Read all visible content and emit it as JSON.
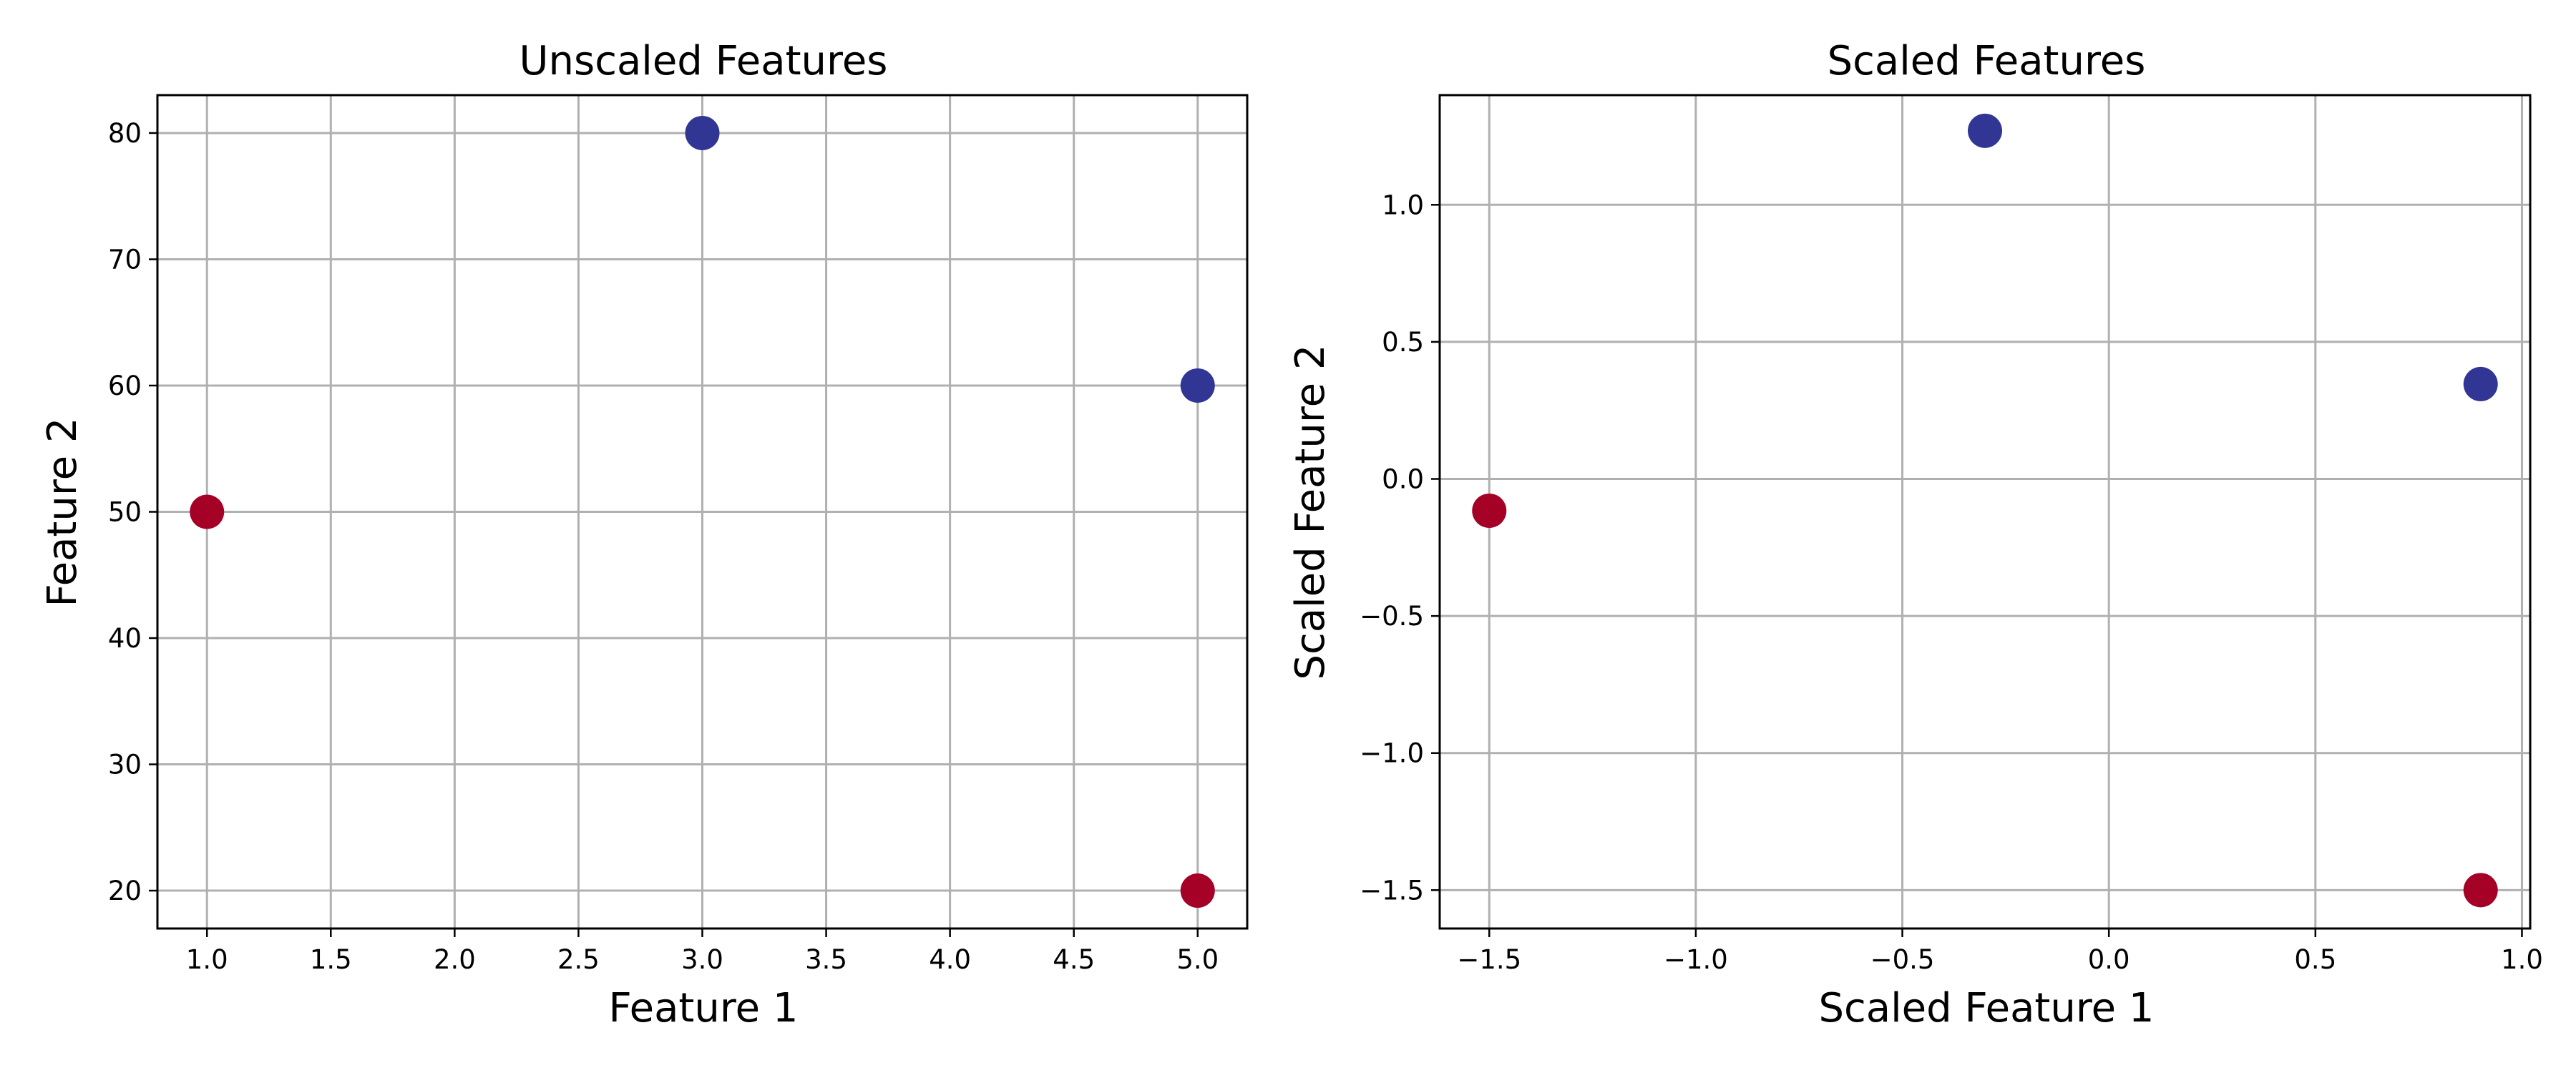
{
  "chart_data": [
    {
      "type": "scatter",
      "title": "Unscaled Features",
      "xlabel": "Feature 1",
      "ylabel": "Feature 2",
      "xlim": [
        0.8,
        5.2
      ],
      "ylim": [
        17,
        83
      ],
      "xticks": [
        1.0,
        1.5,
        2.0,
        2.5,
        3.0,
        3.5,
        4.0,
        4.5,
        5.0
      ],
      "xtick_labels": [
        "1.0",
        "1.5",
        "2.0",
        "2.5",
        "3.0",
        "3.5",
        "4.0",
        "4.5",
        "5.0"
      ],
      "yticks": [
        20,
        30,
        40,
        50,
        60,
        70,
        80
      ],
      "ytick_labels": [
        "20",
        "30",
        "40",
        "50",
        "60",
        "70",
        "80"
      ],
      "grid": true,
      "points": [
        {
          "x": 1,
          "y": 50,
          "color": "#a50026"
        },
        {
          "x": 3,
          "y": 80,
          "color": "#313695"
        },
        {
          "x": 5,
          "y": 60,
          "color": "#313695"
        },
        {
          "x": 5,
          "y": 20,
          "color": "#a50026"
        }
      ]
    },
    {
      "type": "scatter",
      "title": "Scaled Features",
      "xlabel": "Scaled Feature 1",
      "ylabel": "Scaled Feature 2",
      "xlim": [
        -1.62,
        1.02
      ],
      "ylim": [
        -1.64,
        1.4
      ],
      "xticks": [
        -1.5,
        -1.0,
        -0.5,
        0.0,
        0.5,
        1.0
      ],
      "xtick_labels": [
        "−1.5",
        "−1.0",
        "−0.5",
        "0.0",
        "0.5",
        "1.0"
      ],
      "yticks": [
        -1.5,
        -1.0,
        -0.5,
        0.0,
        0.5,
        1.0
      ],
      "ytick_labels": [
        "−1.5",
        "−1.0",
        "−0.5",
        "0.0",
        "0.5",
        "1.0"
      ],
      "grid": true,
      "points": [
        {
          "x": -1.5,
          "y": -0.116,
          "color": "#a50026"
        },
        {
          "x": -0.3,
          "y": 1.27,
          "color": "#313695"
        },
        {
          "x": 0.9,
          "y": 0.346,
          "color": "#313695"
        },
        {
          "x": 0.9,
          "y": -1.5,
          "color": "#a50026"
        }
      ]
    }
  ]
}
